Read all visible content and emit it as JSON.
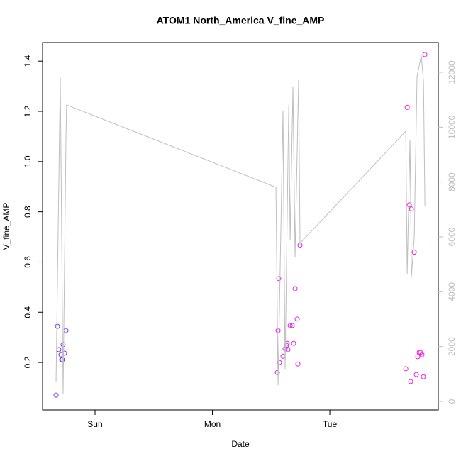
{
  "chart_data": {
    "type": "scatter",
    "title": "ATOM1 North_America V_fine_AMP",
    "xlabel": "Date",
    "ylabel": "V_fine_AMP",
    "xlim": [
      -0.447,
      2.924
    ],
    "ylim": [
      0.011,
      1.474
    ],
    "y2lim": [
      -310,
      13086
    ],
    "xticks": [
      {
        "value": 0,
        "label": "Sun"
      },
      {
        "value": 1,
        "label": "Mon"
      },
      {
        "value": 2,
        "label": "Tue"
      }
    ],
    "yticks": [
      0.2,
      0.4,
      0.6,
      0.8,
      {
        "value": 1,
        "label": "1.0"
      },
      1.2,
      1.4
    ],
    "y2ticks": [
      0,
      2000,
      4000,
      6000,
      8000,
      10000,
      12000
    ],
    "y2color": "#bebebe",
    "series": [
      {
        "type": "scatter",
        "x": [
          -0.332,
          -0.32,
          -0.308,
          -0.29,
          -0.284,
          -0.278,
          -0.272,
          -0.26,
          -0.248,
          1.553,
          1.559,
          1.565,
          1.571,
          1.601,
          1.619,
          1.631,
          1.637,
          1.643,
          1.662,
          1.68,
          1.692,
          1.704,
          1.722,
          1.728,
          1.746,
          2.647,
          2.659,
          2.677,
          2.689,
          2.695,
          2.719,
          2.737,
          2.749,
          2.761,
          2.773,
          2.785,
          2.797,
          2.81
        ],
        "values": [
          0.07,
          0.344,
          0.251,
          0.231,
          0.211,
          0.211,
          0.271,
          0.237,
          0.327,
          0.16,
          0.327,
          0.534,
          0.2,
          0.225,
          0.254,
          0.268,
          0.276,
          0.251,
          0.347,
          0.347,
          0.276,
          0.494,
          0.373,
          0.194,
          0.667,
          0.175,
          1.216,
          0.828,
          0.124,
          0.811,
          0.639,
          0.152,
          0.223,
          0.24,
          0.24,
          0.231,
          0.143,
          1.426
        ],
        "colors": [
          "#7437f0",
          "#7437f0",
          "#7437f0",
          "#7835ee",
          "#7835ee",
          "#7835ee",
          "#7c33ee",
          "#7c33ee",
          "#7c33ee",
          "#d523e8",
          "#d523e8",
          "#d523e8",
          "#d523e8",
          "#d823e8",
          "#d823e8",
          "#d823e8",
          "#d823e8",
          "#d823e8",
          "#da22e8",
          "#da22e8",
          "#da22e8",
          "#da22e8",
          "#dc22e8",
          "#dc22e8",
          "#dc22e8",
          "#f01ee0",
          "#f01ee0",
          "#f01ee0",
          "#f01ee0",
          "#f01ee0",
          "#f01ee0",
          "#f01ee0",
          "#f01ee0",
          "#f01ee0",
          "#f01ee0",
          "#f01ee0",
          "#f01ee0",
          "#f01ee0"
        ]
      },
      {
        "type": "line",
        "axis": "y2",
        "color": "#bebebe",
        "x": [
          -0.332,
          -0.296,
          -0.272,
          -0.248,
          -0.242,
          1.541,
          1.559,
          1.601,
          1.619,
          1.65,
          1.662,
          1.686,
          1.704,
          1.734,
          1.746,
          2.647,
          2.659,
          2.683,
          2.695,
          2.719,
          2.743,
          2.779,
          2.798,
          2.81
        ],
        "values": [
          724,
          11845,
          284,
          9466,
          10811,
          7811,
          595,
          10578,
          1190,
          10811,
          5897,
          11483,
          5276,
          11716,
          5767,
          9854,
          4655,
          9544,
          4552,
          5974,
          11845,
          12621,
          11664,
          7138
        ]
      }
    ]
  }
}
